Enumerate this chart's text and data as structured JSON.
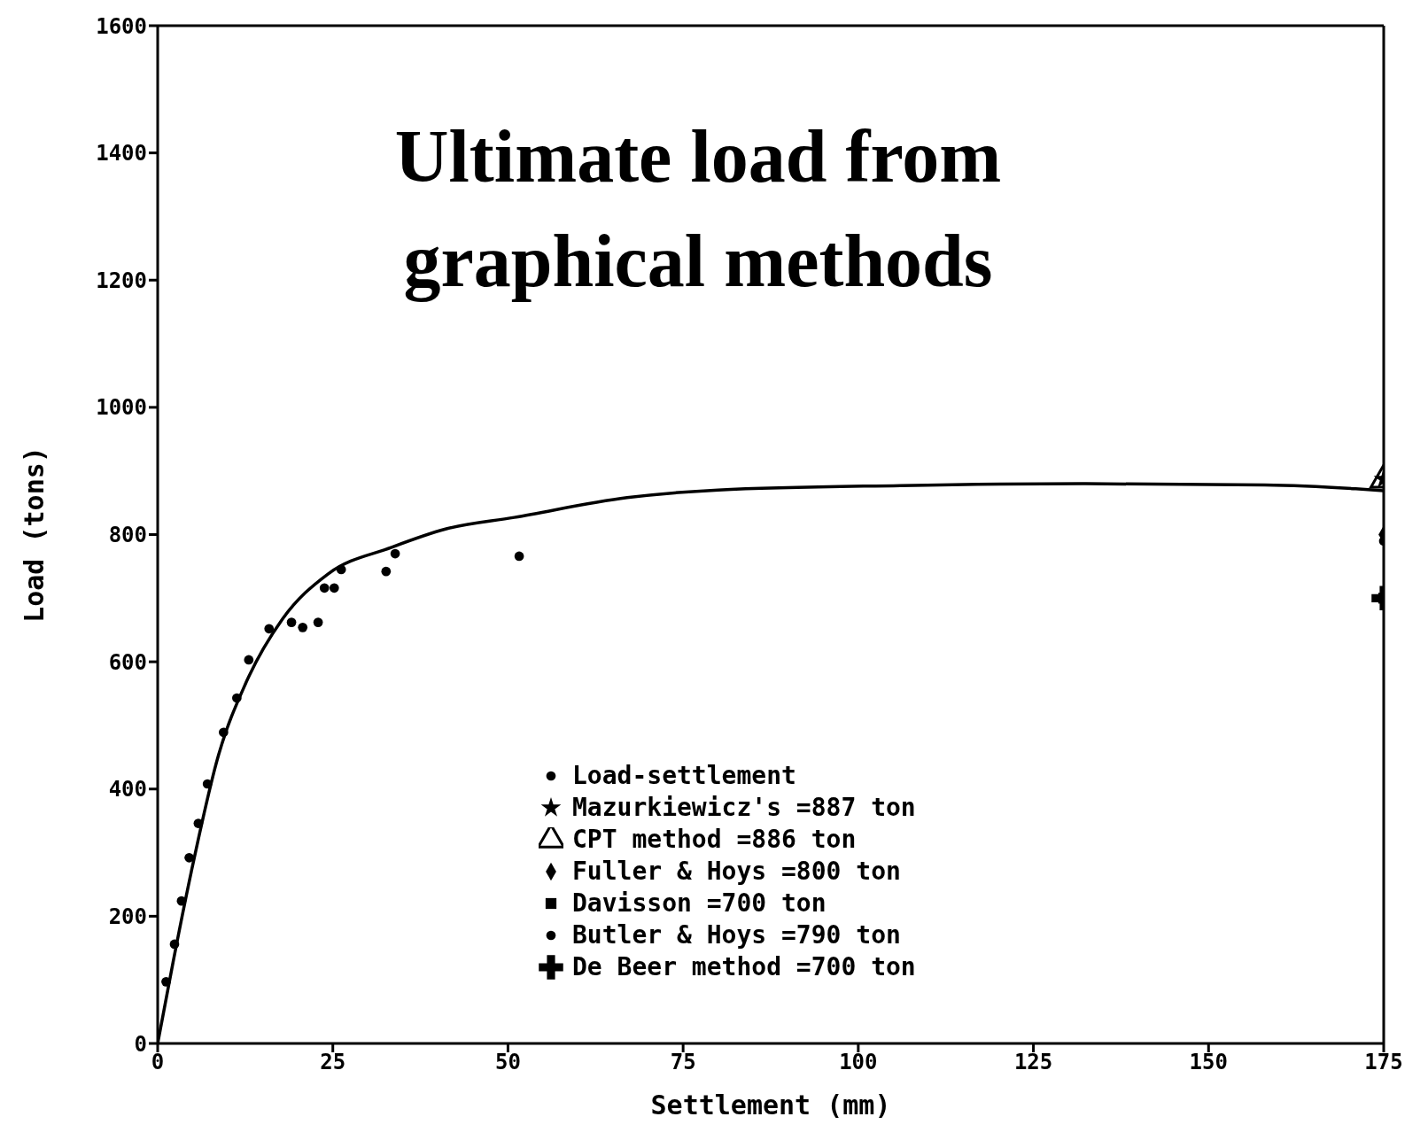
{
  "chart_data": {
    "type": "scatter",
    "title": "Ultimate load from graphical methods",
    "xlabel": "Settlement (mm)",
    "ylabel": "Load (tons)",
    "xlim": [
      0,
      175
    ],
    "xticks": [
      0,
      25,
      50,
      75,
      100,
      125,
      150,
      175
    ],
    "ylim": [
      0,
      1600
    ],
    "yticks": [
      0,
      200,
      400,
      600,
      800,
      1000,
      1200,
      1400,
      1600
    ],
    "grid": false,
    "legend": "bottom",
    "line_style": "solid",
    "series": [
      {
        "name": "Load-settlement",
        "color": "#000000",
        "marker": "circle",
        "x": [
          1.2,
          2.4,
          3.4,
          4.5,
          5.8,
          7.1,
          9.4,
          11.3,
          13,
          15.9,
          19.1,
          20.7,
          22.9,
          23.8,
          25.2,
          26.2,
          32.6,
          33.9,
          51.6
        ],
        "values": [
          97,
          156,
          224,
          292,
          346,
          408,
          489,
          543,
          603,
          652,
          662,
          654,
          662,
          716,
          716,
          745,
          742,
          770,
          766
        ]
      },
      {
        "type": "line",
        "color": "#000000",
        "marker": "none",
        "x": [
          0,
          2.2,
          4.8,
          8.7,
          12.6,
          17.8,
          24.3,
          33.4,
          41.2,
          50.9,
          67,
          80,
          106,
          132,
          158,
          171,
          175
        ],
        "values": [
          0,
          128,
          270,
          454,
          567,
          667,
          738,
          780,
          809,
          827,
          858,
          870,
          877,
          880,
          878,
          872,
          869
        ]
      },
      {
        "name": "Mazurkiewicz's =887 ton",
        "color": "#000000",
        "marker": "star",
        "x": [
          175
        ],
        "values": [
          887
        ]
      },
      {
        "name": "CPT method =886 ton",
        "color": "#000000",
        "marker": "triangle",
        "x": [
          175
        ],
        "values": [
          886
        ]
      },
      {
        "name": "Fuller & Hoys =800 ton",
        "color": "#000000",
        "marker": "diamond",
        "x": [
          175
        ],
        "values": [
          800
        ]
      },
      {
        "name": "Davisson =700 ton",
        "color": "#000000",
        "marker": "square",
        "x": [
          175
        ],
        "values": [
          700
        ]
      },
      {
        "name": "Butler & Hoys =790 ton",
        "color": "#000000",
        "marker": "circle",
        "x": [
          175
        ],
        "values": [
          790
        ]
      },
      {
        "name": "De Beer method =700 ton",
        "color": "#000000",
        "marker": "cross",
        "x": [
          175
        ],
        "values": [
          700
        ]
      }
    ]
  }
}
